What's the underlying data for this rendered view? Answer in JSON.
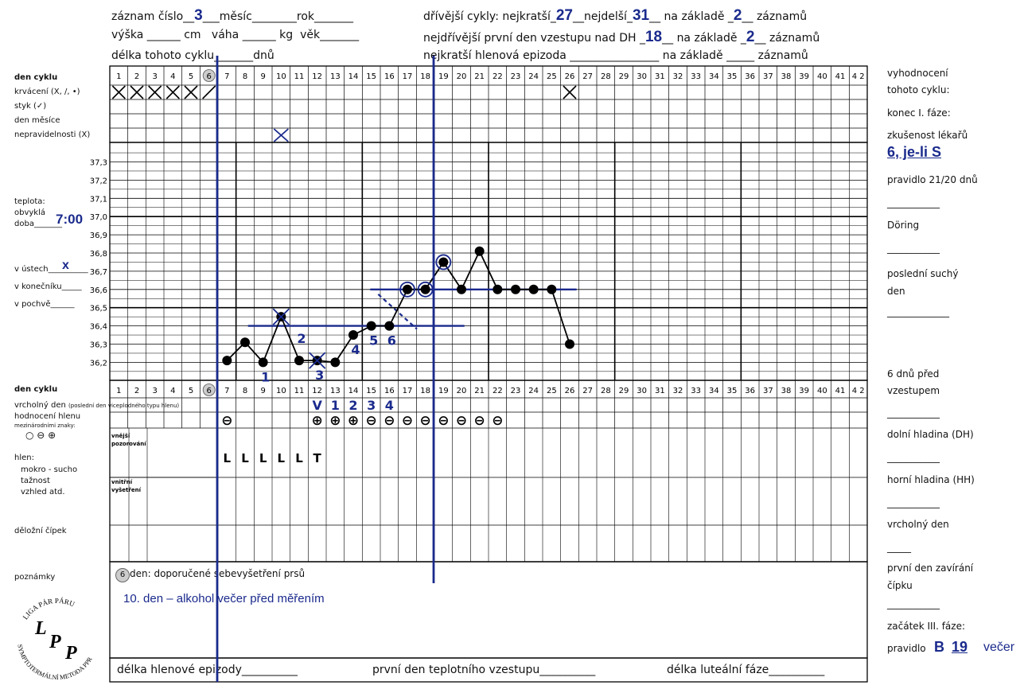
{
  "header": {
    "record_label": "záznam číslo",
    "record_value": "3",
    "month_label": "měsíc",
    "year_label": "rok",
    "height_label": "výška",
    "height_unit": "cm",
    "weight_label": "váha",
    "weight_unit": "kg",
    "age_label": "věk",
    "cycle_length_label": "délka tohoto cyklu",
    "cycle_length_unit": "dnů",
    "prev_cycles_label": "dřívější cykly: nejkratší",
    "shortest_value": "27",
    "longest_label": "nejdelší",
    "longest_value": "31",
    "based_on_label": "na základě",
    "based_on_value": "2",
    "records_label": "záznamů",
    "earliest_first_day_label": "nejdřívější první den vzestupu nad DH",
    "earliest_value": "18",
    "based_on_value2": "2",
    "shortest_mucus_label": "nejkratší hlenová epizoda"
  },
  "left_labels": {
    "den_cyklu": "den cyklu",
    "krvaceni": "krvácení (X, /, •)",
    "styk": "styk (✓)",
    "den_mesice": "den měsíce",
    "nepravidelnosti": "nepravidelnosti (X)",
    "teplota": "teplota:",
    "obvykla": "obvyklá",
    "doba": "doba",
    "time_value": "7:00",
    "v_ustech": "v ústech",
    "v_ustech_mark": "x",
    "v_konecniku": "v konečníku",
    "v_pochve": "v pochvě",
    "den_cyklu2": "den cyklu",
    "vrcholny_den": "vrcholný den",
    "vrcholny_den_note": "(poslední den viceplodného typu hlenu)",
    "hodnoceni_hlenu": "hodnocení hlenu",
    "mezinarodni": "mezinárodními znaky:",
    "symbols": "○ ⊖ ⊕",
    "hlen": "hlen:",
    "mokro": "mokro - sucho",
    "taznost": "tažnost",
    "vzhled": "vzhled atd.",
    "delozni": "děložní čípek",
    "poznamky": "poznámky",
    "vnejsi1": "vnější",
    "vnejsi2": "pozorování",
    "vnitrni1": "vnitřní",
    "vnitrni2": "vyšetření"
  },
  "right_panel": {
    "vyhodnoceni1": "vyhodnocení",
    "vyhodnoceni2": "tohoto cyklu:",
    "konec": "konec I. fáze:",
    "zkusenost": "zkušenost lékařů",
    "zkusenost_value": "6, je-li S",
    "pravidlo2120": "pravidlo 21/20 dnů",
    "doring": "Döring",
    "posledni1": "poslední suchý",
    "posledni2": "den",
    "sest1": "6 dnů před",
    "sest2": "vzestupem",
    "dolni": "dolní hladina (DH)",
    "horni": "horní hladina (HH)",
    "vrcholny": "vrcholný den",
    "prvni1": "první den zavírání",
    "prvni2": "čípku",
    "zacatek": "začátek III. fáze:",
    "pravidlo": "pravidlo",
    "pravidlo_value": "B",
    "pravidlo_day": "19",
    "vecer": "večer"
  },
  "notes": {
    "self_exam": "den: doporučené sebevyšetření prsů",
    "self_exam_day": "6",
    "note1": "10. den – alkohol večer před měřením"
  },
  "footer": {
    "mucus_length": "délka hlenové epizody",
    "first_rise_day": "první den teplotního vzestupu",
    "luteal_length": "délka luteální fáze"
  },
  "logo": {
    "top_text": "LIGA PÁR PÁRU",
    "bottom_text": "SYMPTOTERMÁLNÍ METODA PPR",
    "letters": "LPP"
  },
  "chart_data": {
    "type": "line",
    "title": "",
    "xlabel": "den cyklu",
    "ylabel": "teplota",
    "days": [
      1,
      2,
      3,
      4,
      5,
      6,
      7,
      8,
      9,
      10,
      11,
      12,
      13,
      14,
      15,
      16,
      17,
      18,
      19,
      20,
      21,
      22,
      23,
      24,
      25,
      26,
      27,
      28,
      29,
      30,
      31,
      32,
      33,
      34,
      35,
      36,
      37,
      38,
      39,
      40,
      41,
      42
    ],
    "day_labels": [
      "1",
      "2",
      "3",
      "4",
      "5",
      "6",
      "7",
      "8",
      "9",
      "10",
      "11",
      "12",
      "13",
      "14",
      "15",
      "16",
      "17",
      "18",
      "19",
      "20",
      "21",
      "22",
      "23",
      "24",
      "25",
      "26",
      "27",
      "28",
      "29",
      "30",
      "31",
      "32",
      "33",
      "34",
      "35",
      "36",
      "37",
      "38",
      "39",
      "40",
      "41",
      "4 2"
    ],
    "y_ticks": [
      "37,3",
      "37,2",
      "37,1",
      "37,0",
      "36,9",
      "36,8",
      "36,7",
      "36,6",
      "36,5",
      "36,4",
      "36,3",
      "36,2"
    ],
    "ylim": [
      36.15,
      37.35
    ],
    "series": [
      {
        "x": [
          7,
          8,
          9,
          10,
          11,
          12,
          13,
          14,
          15,
          16,
          17,
          18,
          19,
          20,
          21,
          22,
          23,
          24,
          25,
          26
        ],
        "y": [
          36.21,
          36.31,
          36.2,
          36.45,
          36.21,
          36.21,
          36.2,
          36.35,
          36.4,
          36.4,
          36.6,
          36.6,
          36.75,
          36.6,
          36.81,
          36.6,
          36.6,
          36.6,
          36.6,
          36.3
        ]
      }
    ],
    "circled_points": [
      17,
      18,
      19
    ],
    "crossed_points": [
      10,
      12
    ],
    "low_level": 36.4,
    "low_level_span": [
      8,
      20
    ],
    "high_level": 36.6,
    "high_level_span": [
      15,
      26
    ],
    "count_labels": [
      {
        "day": 9,
        "text": "1"
      },
      {
        "day": 11,
        "text": "2"
      },
      {
        "day": 12,
        "text": "3"
      },
      {
        "day": 14,
        "text": "4"
      },
      {
        "day": 15,
        "text": "5"
      },
      {
        "day": 16,
        "text": "6"
      }
    ],
    "bleeding": {
      "X": [
        1,
        2,
        3,
        4,
        5,
        26
      ],
      "/": [
        6
      ]
    },
    "irregular_days": [
      10
    ],
    "peak_marks": [
      {
        "day": 12,
        "text": "V"
      },
      {
        "day": 13,
        "text": "1"
      },
      {
        "day": 14,
        "text": "2"
      },
      {
        "day": 15,
        "text": "3"
      },
      {
        "day": 16,
        "text": "4"
      }
    ],
    "mucus": [
      {
        "day": 7,
        "symbol": "⊖"
      },
      {
        "day": 12,
        "symbol": "⊕"
      },
      {
        "day": 13,
        "symbol": "⊕"
      },
      {
        "day": 14,
        "symbol": "⊕"
      },
      {
        "day": 15,
        "symbol": "⊖"
      },
      {
        "day": 16,
        "symbol": "⊖"
      },
      {
        "day": 17,
        "symbol": "⊖"
      },
      {
        "day": 18,
        "symbol": "⊖"
      },
      {
        "day": 19,
        "symbol": "⊖"
      },
      {
        "day": 20,
        "symbol": "⊖"
      },
      {
        "day": 21,
        "symbol": "⊖"
      },
      {
        "day": 22,
        "symbol": "⊖"
      }
    ],
    "external_obs": [
      {
        "day": 7,
        "text": "L"
      },
      {
        "day": 8,
        "text": "L"
      },
      {
        "day": 9,
        "text": "L"
      },
      {
        "day": 10,
        "text": "L"
      },
      {
        "day": 11,
        "text": "L"
      },
      {
        "day": 12,
        "text": "T"
      }
    ],
    "grid": true
  }
}
